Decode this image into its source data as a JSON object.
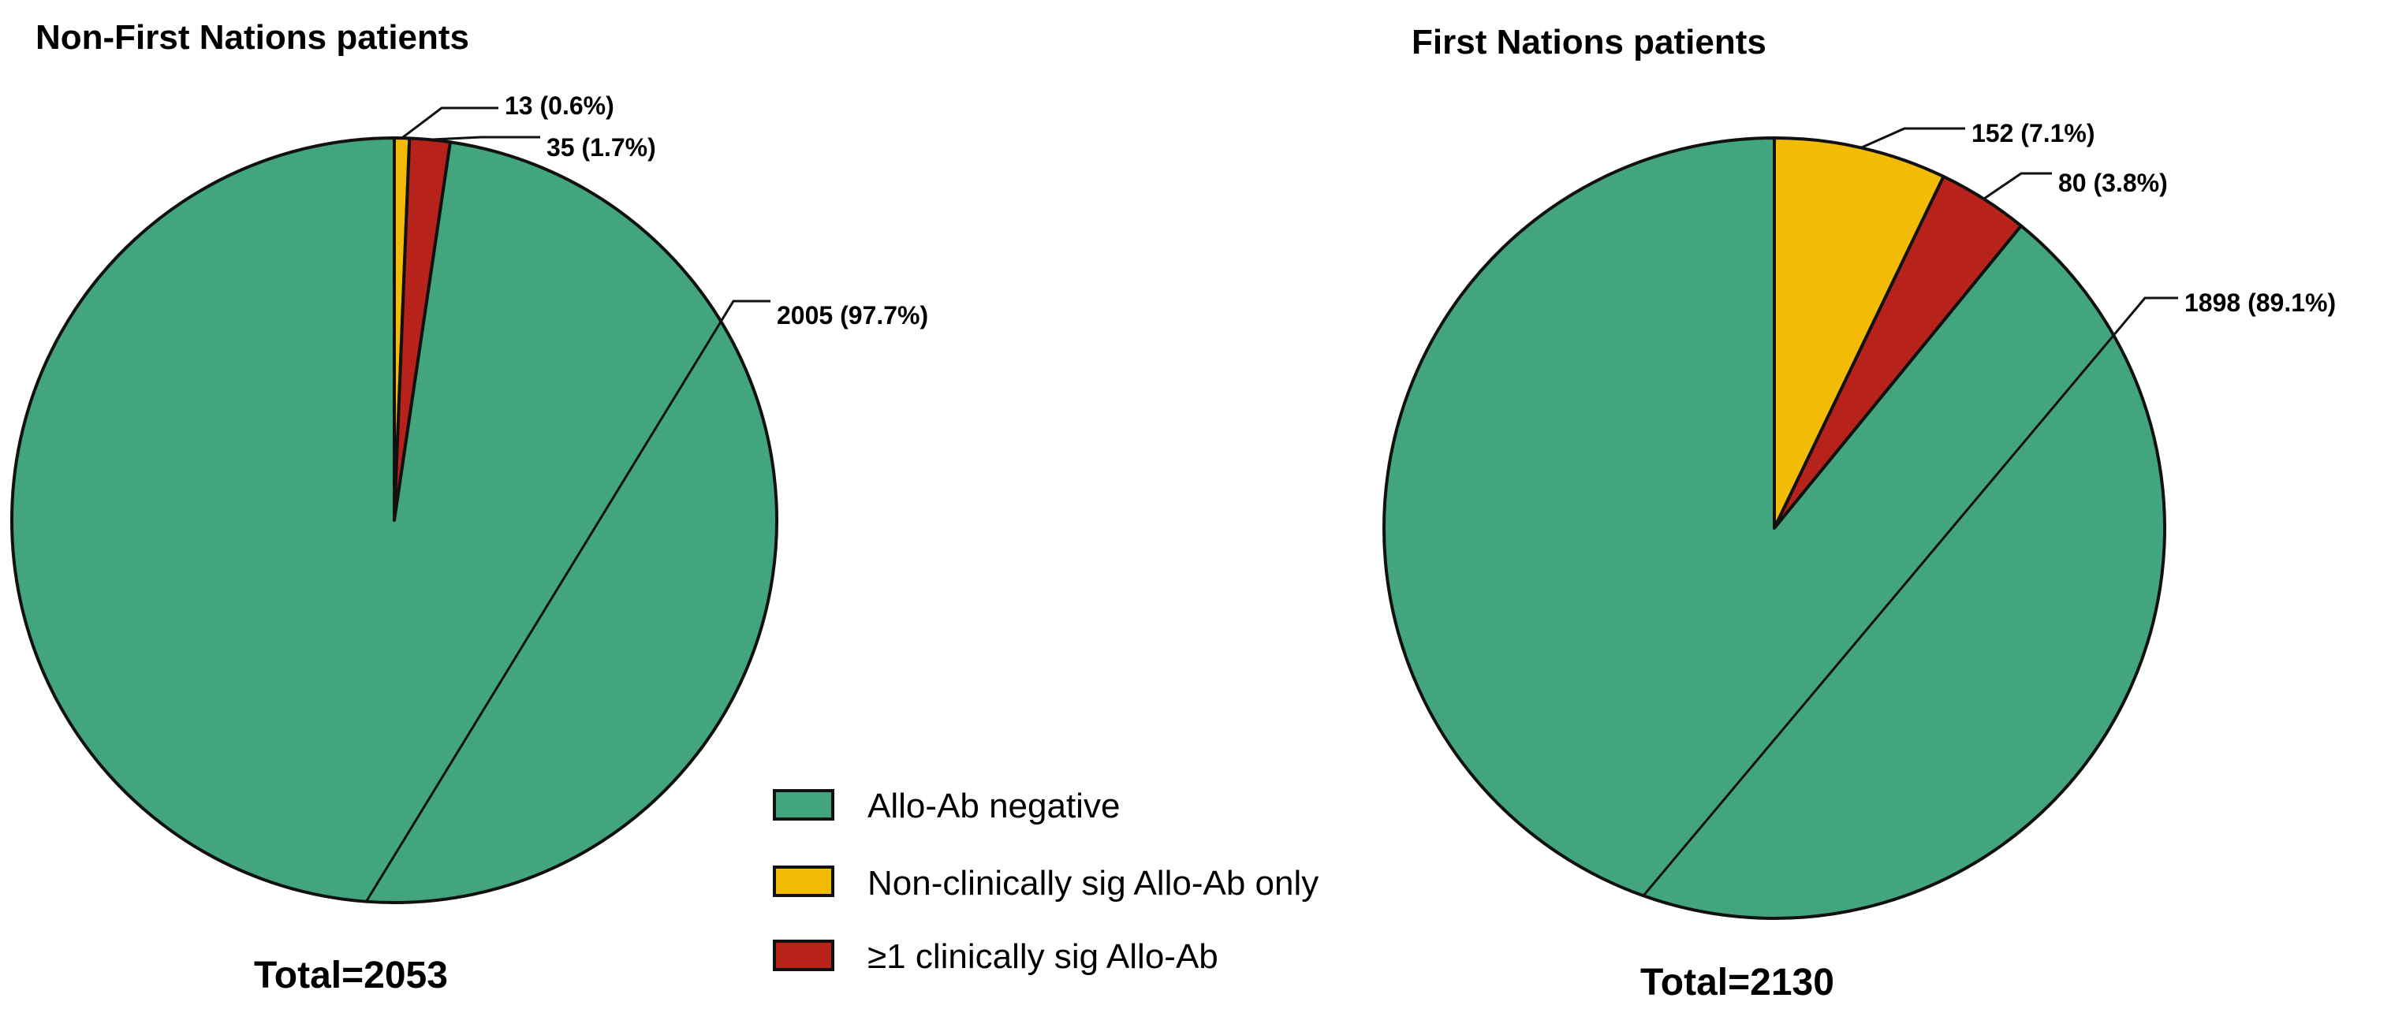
{
  "chart_data": [
    {
      "type": "pie",
      "title": "Non-First Nations patients",
      "total_label": "Total=2053",
      "slices": [
        {
          "name": "Allo-Ab negative",
          "value": 2005,
          "label": "2005 (97.7%)"
        },
        {
          "name": "Non-clinically sig Allo-Ab only",
          "value": 13,
          "label": "13 (0.6%)"
        },
        {
          "name": "≥1 clinically sig Allo-Ab",
          "value": 35,
          "label": "35 (1.7%)"
        }
      ]
    },
    {
      "type": "pie",
      "title": "First Nations patients",
      "total_label": "Total=2130",
      "slices": [
        {
          "name": "Allo-Ab negative",
          "value": 1898,
          "label": "1898 (89.1%)"
        },
        {
          "name": "Non-clinically sig Allo-Ab only",
          "value": 152,
          "label": "152 (7.1%)"
        },
        {
          "name": "≥1 clinically sig Allo-Ab",
          "value": 80,
          "label": "80 (3.8%)"
        }
      ]
    }
  ],
  "legend": [
    {
      "label": "Allo-Ab negative",
      "color": "#43a57e"
    },
    {
      "label": "Non-clinically sig Allo-Ab only",
      "color": "#f2bb05"
    },
    {
      "label": "≥1 clinically sig Allo-Ab",
      "color": "#b7221b"
    }
  ],
  "colors": {
    "Allo-Ab negative": "#43a57e",
    "Non-clinically sig Allo-Ab only": "#f2bb05",
    "≥1 clinically sig Allo-Ab": "#b7221b"
  }
}
